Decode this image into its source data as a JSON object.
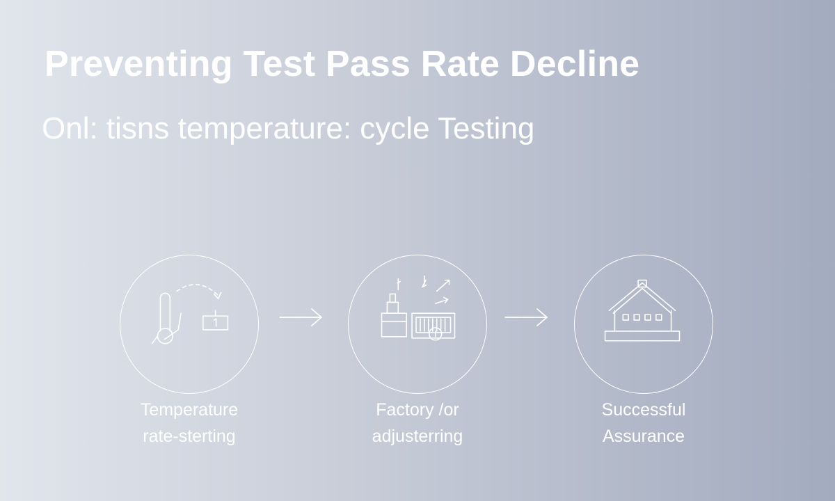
{
  "title": "Preventing Test Pass Rate Decline",
  "subtitle": "Onl: tisns temperature: cycle Testing",
  "steps": [
    {
      "icon": "thermometer-transfer-icon",
      "label_line1": "Temperature",
      "label_line2": "rate-sterting"
    },
    {
      "icon": "factory-adjustment-icon",
      "label_line1": "Factory /or",
      "label_line2": "adjusterring"
    },
    {
      "icon": "house-assurance-icon",
      "label_line1": "Successful",
      "label_line2": "Assurance"
    }
  ],
  "arrows": [
    "right-arrow-icon",
    "right-arrow-icon"
  ],
  "colors": {
    "line": "#ffffff",
    "background_left": "#e1e5ec",
    "background_right": "#a3abbf"
  }
}
